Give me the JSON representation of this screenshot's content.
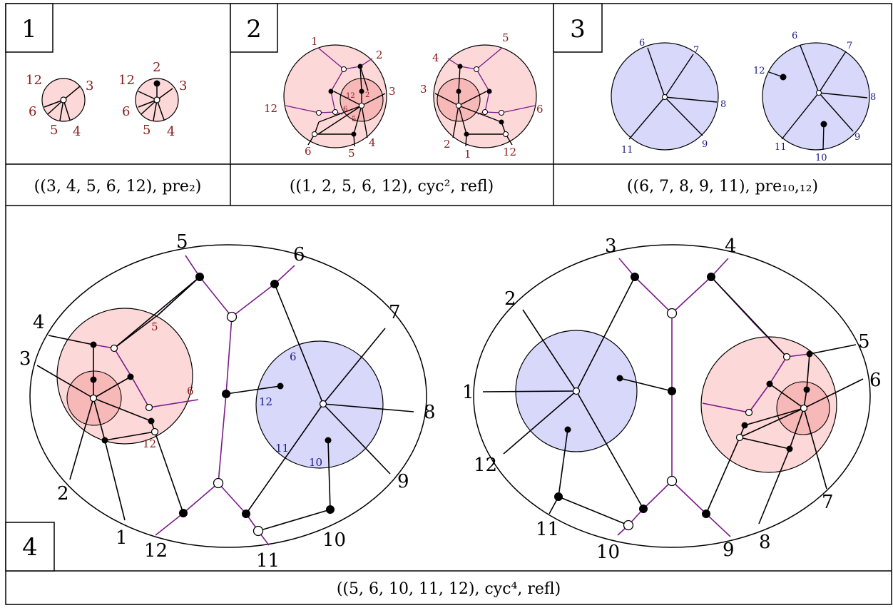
{
  "panels": [
    {
      "id": "1",
      "number": "1",
      "caption": "((3, 4, 5, 6, 12), pre₂)"
    },
    {
      "id": "2",
      "number": "2",
      "caption": "((1, 2, 5, 6, 12), cyc², refl)"
    },
    {
      "id": "3",
      "number": "3",
      "caption": "((6, 7, 8, 9, 11), pre₁₀,₁₂)"
    },
    {
      "id": "4",
      "number": "4",
      "caption": "((5, 6, 10, 11, 12), cyc⁴, refl)"
    }
  ],
  "labels": {
    "p1a": [
      "12",
      "3",
      "6",
      "5",
      "4"
    ],
    "p1b": [
      "2",
      "12",
      "3",
      "6",
      "5",
      "4"
    ],
    "p2a": [
      "1",
      "2",
      "3",
      "12",
      "6",
      "5",
      "4"
    ],
    "p2a_inner": [
      "12",
      "2",
      "6",
      "5"
    ],
    "p2b": [
      "5",
      "4",
      "3",
      "6",
      "2",
      "1",
      "12"
    ],
    "p3a": [
      "6",
      "7",
      "8",
      "9",
      "11"
    ],
    "p3b": [
      "6",
      "7",
      "12",
      "8",
      "9",
      "11",
      "10"
    ],
    "p4a": [
      "5",
      "6",
      "4",
      "3",
      "7",
      "8",
      "9",
      "2",
      "1",
      "12",
      "11",
      "10"
    ],
    "p4a_red": [
      "5",
      "6",
      "12"
    ],
    "p4a_blue": [
      "6",
      "12",
      "11",
      "10"
    ],
    "p4b": [
      "3",
      "4",
      "2",
      "5",
      "6",
      "1",
      "12",
      "7",
      "11",
      "10",
      "9",
      "8"
    ]
  },
  "colors": {
    "pink": "#fdd8d8",
    "pink_dark": "#f7b8b8",
    "blue": "#d8d8fb",
    "purple": "#7a1a8a",
    "red_label": "#8b1a1a",
    "blue_label": "#1a1a8b"
  }
}
